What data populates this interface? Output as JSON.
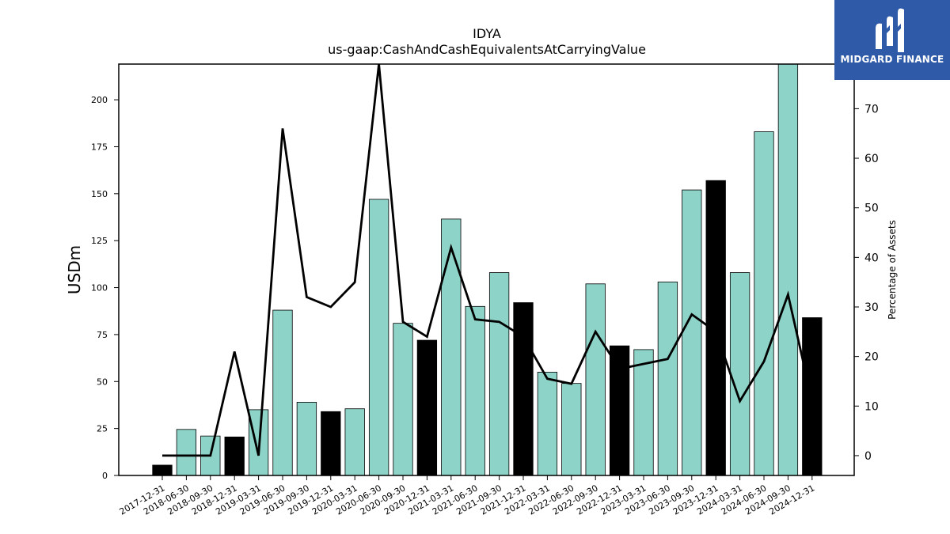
{
  "chart_data": {
    "type": "bar",
    "title": "IDYA",
    "subtitle": "us-gaap:CashAndCashEquivalentsAtCarryingValue",
    "ylabel": "USDm",
    "y2label": "Percentage of Assets",
    "categories": [
      "2017-12-31",
      "2018-06-30",
      "2018-09-30",
      "2018-12-31",
      "2019-03-31",
      "2019-06-30",
      "2019-09-30",
      "2019-12-31",
      "2020-03-31",
      "2020-06-30",
      "2020-09-30",
      "2020-12-31",
      "2021-03-31",
      "2021-06-30",
      "2021-09-30",
      "2021-12-31",
      "2022-03-31",
      "2022-06-30",
      "2022-09-30",
      "2022-12-31",
      "2023-03-31",
      "2023-06-30",
      "2023-09-30",
      "2023-12-31",
      "2024-03-31",
      "2024-06-30",
      "2024-09-30",
      "2024-12-31"
    ],
    "series": [
      {
        "axis": "left",
        "values": [
          5.5,
          24.5,
          21,
          20.5,
          35,
          88,
          39,
          34,
          35.5,
          147,
          81,
          72,
          136.5,
          90,
          108,
          92,
          55,
          49,
          102,
          69,
          67,
          103,
          152,
          157,
          108,
          183,
          219,
          84
        ],
        "annual": [
          true,
          false,
          false,
          true,
          false,
          false,
          false,
          true,
          false,
          false,
          false,
          true,
          false,
          false,
          false,
          true,
          false,
          false,
          false,
          true,
          false,
          false,
          false,
          true,
          false,
          false,
          false,
          true
        ]
      },
      {
        "axis": "right",
        "type": "line",
        "values": [
          0,
          0,
          0,
          21,
          0,
          66,
          32,
          30,
          35,
          79,
          27,
          24,
          42,
          27.5,
          27,
          24,
          15.5,
          14.5,
          25,
          17.5,
          18.5,
          19.5,
          28.5,
          25,
          11,
          19,
          32.5,
          11
        ]
      }
    ],
    "ylim": [
      0,
      219
    ],
    "yticks": [
      0,
      25,
      50,
      75,
      100,
      125,
      150,
      175,
      200
    ],
    "y2lim": [
      -4,
      79
    ],
    "y2ticks": [
      0,
      10,
      20,
      30,
      40,
      50,
      60,
      70
    ],
    "colors": {
      "quarter_bar": "#8dd3c7",
      "annual_bar": "#000000",
      "line": "#000000",
      "logo_bg": "#2f5aa8"
    },
    "grid": false
  },
  "logo": {
    "text": "MIDGARD FINANCE",
    "icon": "midgard-logo-icon"
  }
}
